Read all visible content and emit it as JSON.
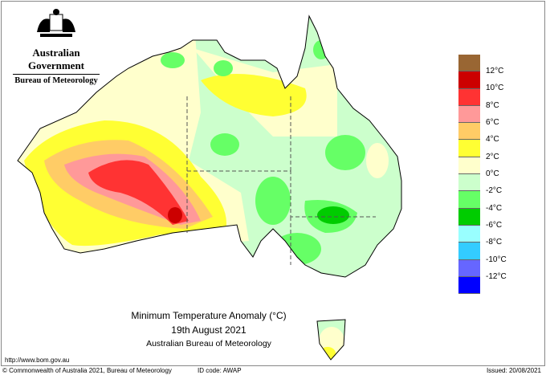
{
  "header": {
    "government": "Australian Government",
    "bureau": "Bureau of Meteorology"
  },
  "legend": {
    "colors": [
      "#996633",
      "#cc0000",
      "#ff3333",
      "#ff9999",
      "#ffcc66",
      "#ffff33",
      "#ffffcc",
      "#ccffcc",
      "#66ff66",
      "#00cc00",
      "#99ffff",
      "#33ccff",
      "#6666ff",
      "#0000ff"
    ],
    "labels": [
      "12°C",
      "10°C",
      "8°C",
      "6°C",
      "4°C",
      "2°C",
      "0°C",
      "-2°C",
      "-4°C",
      "-6°C",
      "-8°C",
      "-10°C",
      "-12°C"
    ]
  },
  "title": {
    "line1": "Minimum Temperature Anomaly (°C)",
    "line2": "19th August 2021",
    "line3": "Australian Bureau of Meteorology"
  },
  "footer": {
    "url": "http://www.bom.gov.au",
    "copyright": "© Commonwealth of Australia 2021, Bureau of Meteorology",
    "id_code": "ID code: AWAP",
    "issued": "Issued: 20/08/2021"
  }
}
